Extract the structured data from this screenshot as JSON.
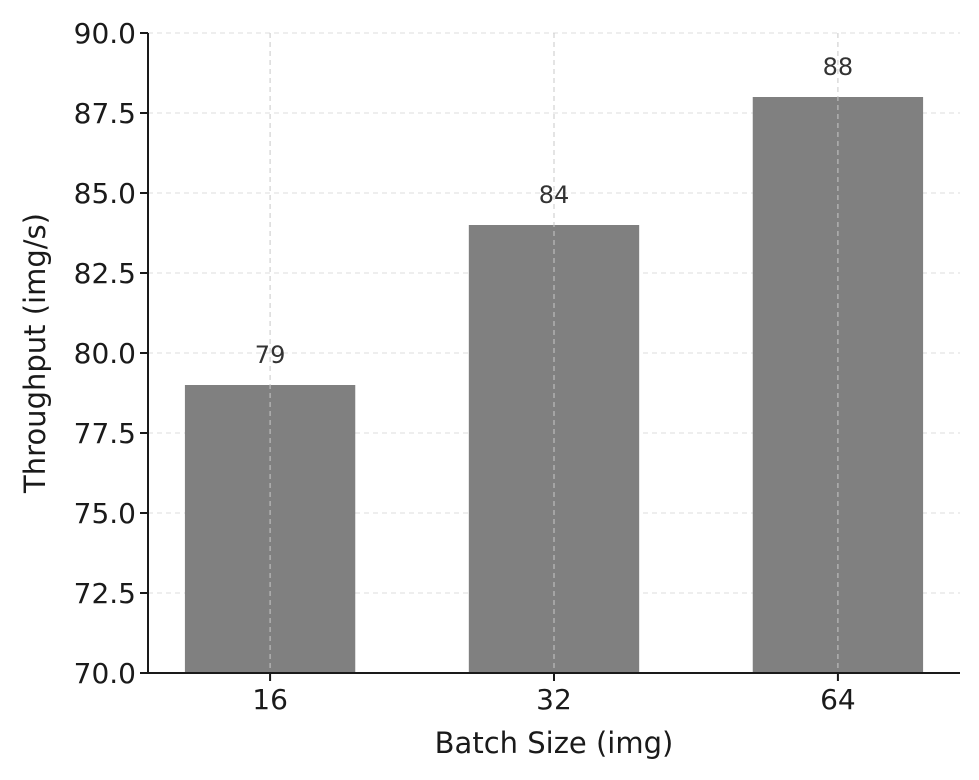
{
  "chart_data": {
    "type": "bar",
    "title": "",
    "xlabel": "Batch Size (img)",
    "ylabel": "Throughput (img/s)",
    "categories": [
      "16",
      "32",
      "64"
    ],
    "values": [
      79,
      84,
      88
    ],
    "data_labels": [
      "79",
      "84",
      "88"
    ],
    "ylim": [
      70,
      90
    ],
    "yticks": [
      "70.0",
      "72.5",
      "75.0",
      "77.5",
      "80.0",
      "82.5",
      "85.0",
      "87.5",
      "90.0"
    ],
    "grid": true,
    "bar_color": "#808080"
  }
}
